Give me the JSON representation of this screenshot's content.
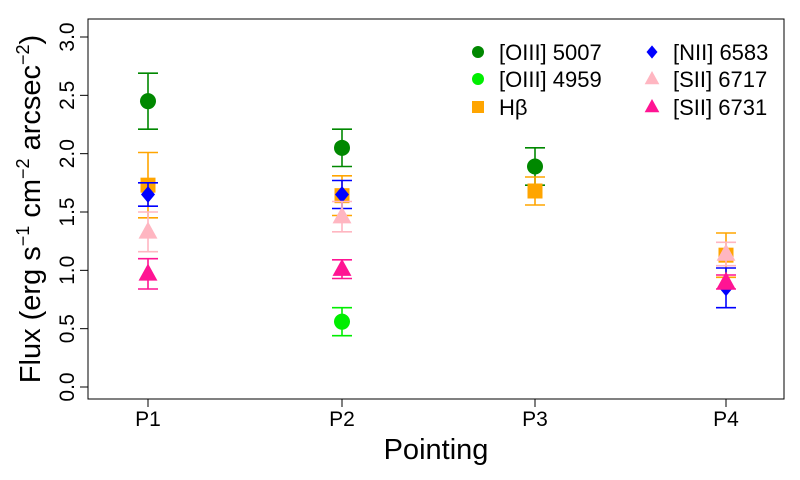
{
  "chart_data": {
    "type": "scatter",
    "xlabel": "Pointing",
    "ylabel": {
      "parts": [
        "Flux (erg s",
        "−1",
        " cm",
        "−2",
        " arcsec",
        "−2",
        ")"
      ],
      "full": "Flux (erg s⁻¹ cm⁻² arcsec⁻²)"
    },
    "categories": [
      "P1",
      "P2",
      "P3",
      "P4"
    ],
    "ylim": [
      -0.1,
      3.1
    ],
    "yticks": [
      "0.0",
      "0.5",
      "1.0",
      "1.5",
      "2.0",
      "2.5",
      "3.0"
    ],
    "legend_position": "top-right",
    "grid": false,
    "series": [
      {
        "name": "[OIII] 5007",
        "color": "#008800",
        "marker": "circle",
        "points": [
          {
            "x": "P1",
            "y": 2.45,
            "err": 0.24
          },
          {
            "x": "P2",
            "y": 2.05,
            "err": 0.16
          },
          {
            "x": "P3",
            "y": 1.89,
            "err": 0.16
          }
        ]
      },
      {
        "name": "[OIII] 4959",
        "color": "#00ee00",
        "marker": "circle",
        "points": [
          {
            "x": "P2",
            "y": 0.56,
            "err": 0.12
          }
        ]
      },
      {
        "name": "Hβ",
        "color": "#ffa500",
        "marker": "square",
        "points": [
          {
            "x": "P1",
            "y": 1.73,
            "err": 0.28
          },
          {
            "x": "P2",
            "y": 1.64,
            "err": 0.17
          },
          {
            "x": "P3",
            "y": 1.68,
            "err": 0.12
          },
          {
            "x": "P4",
            "y": 1.13,
            "err": 0.19
          }
        ]
      },
      {
        "name": "[NII] 6583",
        "color": "#0000ff",
        "marker": "diamond",
        "points": [
          {
            "x": "P1",
            "y": 1.65,
            "err": 0.1
          },
          {
            "x": "P2",
            "y": 1.65,
            "err": 0.12
          },
          {
            "x": "P4",
            "y": 0.85,
            "err": 0.17
          }
        ]
      },
      {
        "name": "[SII] 6717",
        "color": "#ffb6c1",
        "marker": "triangle",
        "points": [
          {
            "x": "P1",
            "y": 1.33,
            "err": 0.17
          },
          {
            "x": "P2",
            "y": 1.46,
            "err": 0.13
          },
          {
            "x": "P4",
            "y": 1.14,
            "err": 0.1
          }
        ]
      },
      {
        "name": "[SII] 6731",
        "color": "#ff1493",
        "marker": "triangle",
        "points": [
          {
            "x": "P1",
            "y": 0.97,
            "err": 0.13
          },
          {
            "x": "P2",
            "y": 1.01,
            "err": 0.08
          },
          {
            "x": "P4",
            "y": 0.9,
            "err": 0.06
          }
        ]
      }
    ]
  }
}
